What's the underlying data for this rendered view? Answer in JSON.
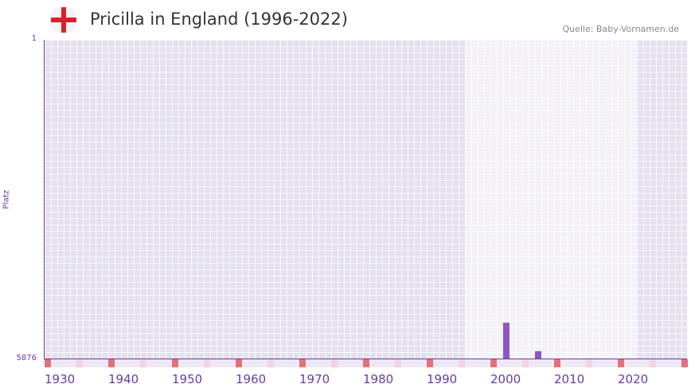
{
  "header": {
    "title": "Pricilla in England (1996-2022)",
    "source": "Quelle: Baby-Vornamen.de",
    "flag_icon": "england-flag-icon"
  },
  "colors": {
    "bar": "#8e55c8",
    "decade_marker": "#e5707a",
    "half_decade_marker": "#f5d3dc",
    "axis": "#6a3aa0"
  },
  "chart_data": {
    "type": "bar",
    "title": "Pricilla in England (1996-2022)",
    "ylabel": "Platz",
    "yticks": [
      "1",
      "5876"
    ],
    "ylim": [
      5876,
      1
    ],
    "xlim": [
      1930,
      2030
    ],
    "highlight_range": [
      1996,
      2022
    ],
    "xticks": [
      "1930",
      "1940",
      "1950",
      "1960",
      "1970",
      "1980",
      "1990",
      "2000",
      "2010",
      "2020"
    ],
    "series": [
      {
        "name": "Platz",
        "x": [
          2002,
          2007
        ],
        "values": [
          5215,
          5740
        ]
      }
    ]
  }
}
